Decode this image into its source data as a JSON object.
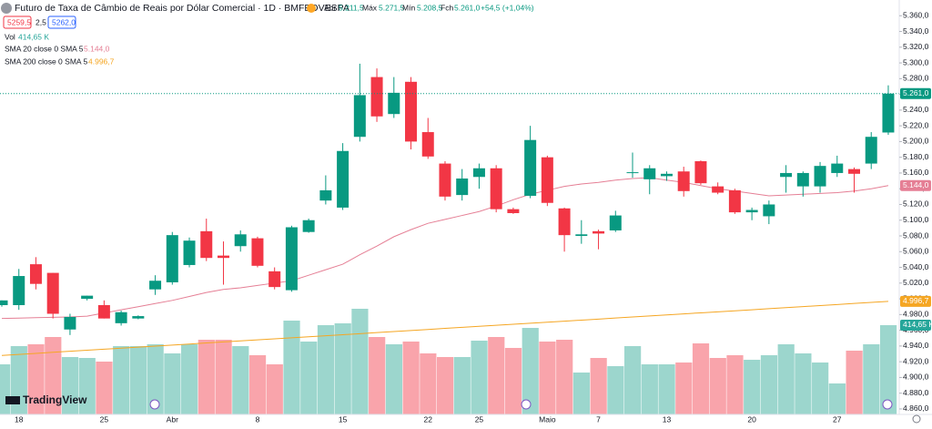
{
  "chart_data": {
    "type": "candlestick",
    "title": "Futuro de Taxa de Câmbio de Reais por Dólar Comercial · 1D · BMFBOVESPA",
    "ohlc_labels": {
      "open": "5.211,5",
      "high": "5.271,5",
      "low": "5.208,5",
      "close": "5.261,0",
      "change": "+54,5 (+1,04%)"
    },
    "quote": {
      "bid": "5259,5",
      "spread": "2,5",
      "ask": "5262,0"
    },
    "categories": [
      null,
      "18",
      null,
      null,
      null,
      null,
      "25",
      null,
      null,
      null,
      "Abr",
      null,
      null,
      null,
      null,
      "8",
      null,
      null,
      null,
      null,
      "15",
      null,
      null,
      null,
      null,
      "22",
      null,
      null,
      "25",
      null,
      null,
      null,
      "Maio",
      null,
      null,
      "7",
      null,
      null,
      null,
      "13",
      null,
      null,
      null,
      null,
      "20",
      null,
      null,
      null,
      null,
      "27",
      null,
      null,
      null
    ],
    "open": [
      4992,
      4992,
      5044,
      5033,
      4961,
      5000,
      4992,
      4969,
      4975,
      5012,
      5021,
      5043,
      5086,
      5055,
      5067,
      5077,
      5035,
      5011,
      5085,
      5125,
      5116,
      5206,
      5282,
      5235,
      5276,
      5212,
      5172,
      5132,
      5155,
      5166,
      5114,
      5131,
      5180,
      5115,
      5080,
      5086,
      5087,
      5160,
      5152,
      5156,
      5162,
      5175,
      5143,
      5138,
      5110,
      5105,
      5155,
      5143,
      5143,
      5160,
      5165,
      5172,
      5211.5
    ],
    "high": [
      4998,
      5038,
      5053,
      5033,
      4981,
      5004,
      4998,
      4985,
      4979,
      5030,
      5085,
      5078,
      5102,
      5073,
      5087,
      5079,
      5040,
      5093,
      5102,
      5157,
      5198,
      5299,
      5293,
      5282,
      5282,
      5230,
      5175,
      5165,
      5172,
      5170,
      5116,
      5220,
      5182,
      5116,
      5100,
      5088,
      5112,
      5186,
      5170,
      5162,
      5168,
      5176,
      5148,
      5140,
      5116,
      5125,
      5170,
      5162,
      5174,
      5182,
      5167,
      5212,
      5271.5
    ],
    "low": [
      4990,
      4986,
      5012,
      4975,
      4954,
      4998,
      4975,
      4966,
      4974,
      5005,
      5018,
      5040,
      5048,
      5018,
      5060,
      5040,
      5012,
      5009,
      5084,
      5120,
      5113,
      5200,
      5225,
      5230,
      5190,
      5178,
      5125,
      5125,
      5140,
      5110,
      5108,
      5128,
      5118,
      5060,
      5070,
      5063,
      5085,
      5154,
      5133,
      5150,
      5130,
      5145,
      5133,
      5108,
      5100,
      5095,
      5135,
      5130,
      5135,
      5155,
      5135,
      5165,
      5208.5
    ],
    "close": [
      4998,
      5029,
      5019,
      4981,
      4977,
      5004,
      4975,
      4983,
      4978,
      5023,
      5081,
      5074,
      5052,
      5052,
      5082,
      5042,
      5015,
      5091,
      5100,
      5138,
      5188,
      5259,
      5232,
      5262,
      5200,
      5181,
      5130,
      5153,
      5166,
      5114,
      5109,
      5202,
      5122,
      5081,
      5082,
      5083,
      5106,
      5161,
      5166,
      5159,
      5137,
      5147,
      5135,
      5110,
      5113,
      5120,
      5160,
      5160,
      5169,
      5172,
      5159,
      5206,
      5261
    ],
    "close_last_label": "5.261,0",
    "up_color": "#089981",
    "down_color": "#f23645",
    "volume": [
      232.7,
      317.3,
      325.8,
      359.6,
      266.6,
      262.3,
      245.4,
      317.3,
      317.3,
      325.8,
      283.5,
      325.8,
      346.9,
      346.9,
      317.3,
      275,
      232.7,
      435.8,
      338.5,
      414.6,
      423.1,
      490.8,
      359.6,
      325.8,
      338.5,
      283.5,
      266.6,
      266.6,
      342.7,
      359.6,
      308.9,
      401.9,
      338.5,
      346.9,
      194.6,
      262.3,
      224.2,
      317.3,
      232.7,
      232.7,
      241.2,
      330,
      262.3,
      275,
      253.9,
      275,
      325.8,
      283.5,
      241.2,
      143.9,
      296.2,
      325.8,
      414.65
    ],
    "volume_name": "Vol",
    "volume_last_label": "414,65 K",
    "volume_ylim": [
      0,
      1925
    ],
    "series": [
      {
        "name": "SMA 20 close 0 SMA 5",
        "color": "#e57f95",
        "last_label": "5.144,0",
        "values": [
          4975,
          4975.5,
          4976,
          4976.5,
          4977,
          4978,
          4982,
          4986,
          4990,
          4994,
          4998,
          5003,
          5008,
          5012,
          5014,
          5017,
          5020,
          5023,
          5030,
          5037,
          5044,
          5056,
          5067,
          5079,
          5088,
          5096,
          5101,
          5106,
          5111,
          5118,
          5126,
          5133,
          5138,
          5143,
          5146,
          5148,
          5151,
          5153,
          5154,
          5151,
          5148,
          5144,
          5140,
          5137,
          5134,
          5131,
          5132,
          5133,
          5134,
          5135,
          5137,
          5140,
          5144
        ]
      },
      {
        "name": "SMA 200 close 0 SMA 5",
        "color": "#f5a623",
        "last_label": "4.996,7",
        "values": [
          4928,
          4929.3,
          4930.6,
          4932,
          4933.3,
          4934.6,
          4935.9,
          4937.2,
          4938.6,
          4939.9,
          4941.2,
          4942.5,
          4943.9,
          4945.2,
          4946.5,
          4947.8,
          4949.1,
          4950.5,
          4951.8,
          4953.1,
          4954.4,
          4955.7,
          4957.1,
          4958.4,
          4959.7,
          4961,
          4962.4,
          4963.7,
          4965,
          4966.3,
          4967.6,
          4969,
          4970.3,
          4971.6,
          4972.9,
          4974.2,
          4975.6,
          4976.9,
          4978.2,
          4979.5,
          4980.9,
          4982.2,
          4983.5,
          4984.8,
          4986.1,
          4987.5,
          4988.8,
          4990.1,
          4991.4,
          4992.7,
          4994.1,
          4995.4,
          4996.7
        ]
      }
    ],
    "ylim": [
      4853,
      5380
    ],
    "yticks": [
      {
        "value": 4860,
        "label": "4.860,0"
      },
      {
        "value": 4880,
        "label": "4.880,0"
      },
      {
        "value": 4900,
        "label": "4.900,0"
      },
      {
        "value": 4920,
        "label": "4.920,0"
      },
      {
        "value": 4940,
        "label": "4.940,0"
      },
      {
        "value": 4960,
        "label": "4.960,0"
      },
      {
        "value": 4980,
        "label": "4.980,0"
      },
      {
        "value": 5000,
        "label": "5.000,0"
      },
      {
        "value": 5020,
        "label": "5.020,0"
      },
      {
        "value": 5040,
        "label": "5.040,0"
      },
      {
        "value": 5060,
        "label": "5.060,0"
      },
      {
        "value": 5080,
        "label": "5.080,0"
      },
      {
        "value": 5100,
        "label": "5.100,0"
      },
      {
        "value": 5120,
        "label": "5.120,0"
      },
      {
        "value": 5140,
        "label": "5.140,0"
      },
      {
        "value": 5160,
        "label": "5.160,0"
      },
      {
        "value": 5180,
        "label": "5.180,0"
      },
      {
        "value": 5200,
        "label": "5.200,0"
      },
      {
        "value": 5220,
        "label": "5.220,0"
      },
      {
        "value": 5240,
        "label": "5.240,0"
      },
      {
        "value": 5260,
        "label": "5.260,0"
      },
      {
        "value": 5280,
        "label": "5.280,0"
      },
      {
        "value": 5300,
        "label": "5.300,0"
      },
      {
        "value": 5320,
        "label": "5.320,0"
      },
      {
        "value": 5340,
        "label": "5.340,0"
      },
      {
        "value": 5360,
        "label": "5.360,0"
      }
    ],
    "grid": false,
    "brand": "TradingView"
  }
}
